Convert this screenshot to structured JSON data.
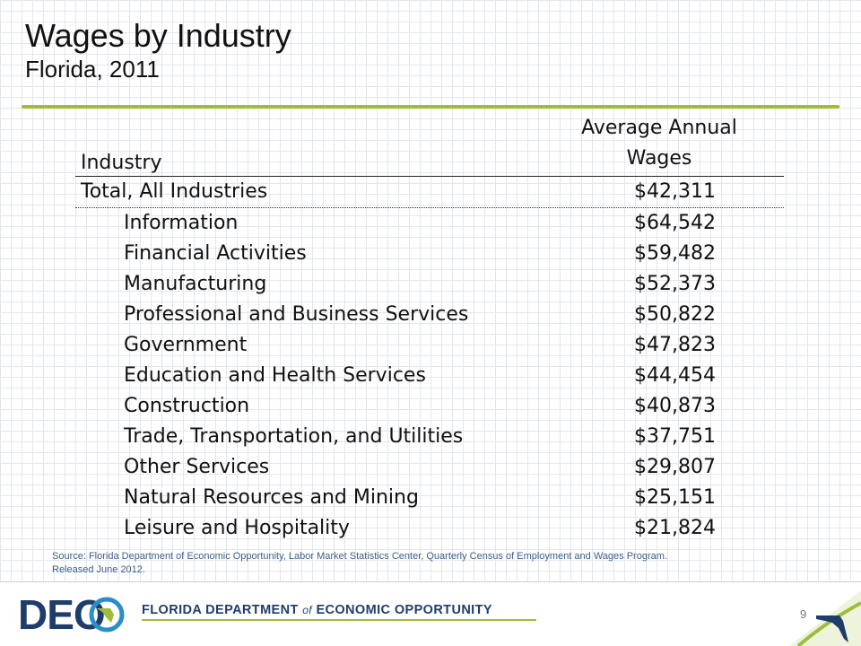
{
  "title": "Wages by Industry",
  "subtitle": "Florida, 2011",
  "table": {
    "header_industry": "Industry",
    "header_wages_line1": "Average Annual",
    "header_wages_line2": "Wages",
    "total": {
      "industry": "Total, All Industries",
      "wage": "$42,311"
    },
    "rows": [
      {
        "industry": "Information",
        "wage": "$64,542"
      },
      {
        "industry": "Financial Activities",
        "wage": "$59,482"
      },
      {
        "industry": "Manufacturing",
        "wage": "$52,373"
      },
      {
        "industry": "Professional and Business Services",
        "wage": "$50,822"
      },
      {
        "industry": "Government",
        "wage": "$47,823"
      },
      {
        "industry": "Education and Health Services",
        "wage": "$44,454"
      },
      {
        "industry": "Construction",
        "wage": "$40,873"
      },
      {
        "industry": "Trade, Transportation, and Utilities",
        "wage": "$37,751"
      },
      {
        "industry": "Other Services",
        "wage": "$29,807"
      },
      {
        "industry": "Natural Resources and Mining",
        "wage": "$25,151"
      },
      {
        "industry": "Leisure and Hospitality",
        "wage": "$21,824"
      }
    ]
  },
  "source_line1": "Source:  Florida Department of Economic Opportunity, Labor Market Statistics Center, Quarterly Census of Employment and Wages Program.",
  "source_line2": "Released June 2012.",
  "footer": {
    "logo_text": "DEO",
    "org_part1": "FLORIDA DEPARTMENT",
    "org_of": "of",
    "org_part2": "ECONOMIC OPPORTUNITY",
    "page_number": "9"
  },
  "colors": {
    "accent_green": "#9ebd3a",
    "brand_navy": "#1f3d6a",
    "brand_blue": "#2a8fc7",
    "source_text": "#3d5f8a"
  }
}
